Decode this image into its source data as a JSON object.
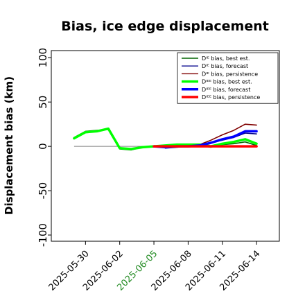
{
  "chart_data": {
    "type": "line",
    "title": "Bias, ice edge displacement",
    "xlabel": "",
    "ylabel": "Displacement bias (km)",
    "ylim": [
      -107,
      108
    ],
    "yticks": [
      -100,
      -50,
      0,
      50,
      100
    ],
    "xlim": [
      "2025-05-27",
      "2025-06-16"
    ],
    "xticks": [
      {
        "label": "2025-05-30",
        "color": "#000000"
      },
      {
        "label": "2025-06-02",
        "color": "#000000"
      },
      {
        "label": "2025-06-05",
        "color": "#228b22"
      },
      {
        "label": "2025-06-08",
        "color": "#000000"
      },
      {
        "label": "2025-06-11",
        "color": "#000000"
      },
      {
        "label": "2025-06-14",
        "color": "#000000"
      }
    ],
    "grid": false,
    "legend_position": "top-right",
    "zero_line": {
      "y": 0,
      "from": "2025-05-29",
      "to": "2025-06-05",
      "color": "#808080"
    },
    "series": [
      {
        "name": "Dᴵᴱ bias, best est.",
        "color": "#006400",
        "width": "thin",
        "x": [
          "2025-05-29",
          "2025-05-30",
          "2025-05-31",
          "2025-06-01",
          "2025-06-02",
          "2025-06-03",
          "2025-06-04",
          "2025-06-05",
          "2025-06-06",
          "2025-06-07",
          "2025-06-08",
          "2025-06-09",
          "2025-06-10",
          "2025-06-11",
          "2025-06-12",
          "2025-06-13",
          "2025-06-14"
        ],
        "y": [
          10,
          17,
          18,
          19,
          -3,
          -4,
          -1,
          0,
          1,
          2,
          2,
          1,
          -1,
          2,
          3,
          5,
          1
        ]
      },
      {
        "name": "Dᴵᴱ bias, forecast",
        "color": "#00008b",
        "width": "thin",
        "x": [
          "2025-06-06",
          "2025-06-07",
          "2025-06-08",
          "2025-06-09",
          "2025-06-10",
          "2025-06-11",
          "2025-06-12",
          "2025-06-13",
          "2025-06-14"
        ],
        "y": [
          -2,
          -1,
          0,
          2,
          4,
          7,
          10,
          15,
          14
        ]
      },
      {
        "name": "Dᴵᴱ bias, persistence",
        "color": "#800000",
        "width": "thin",
        "x": [
          "2025-06-05",
          "2025-06-06",
          "2025-06-07",
          "2025-06-08",
          "2025-06-09",
          "2025-06-10",
          "2025-06-11",
          "2025-06-12",
          "2025-06-13",
          "2025-06-14"
        ],
        "y": [
          0,
          0,
          0,
          0,
          2,
          7,
          13,
          18,
          25,
          24
        ]
      },
      {
        "name": "Dᴵᴱᴱ bias, best est.",
        "color": "#00ff00",
        "width": "thick",
        "x": [
          "2025-05-29",
          "2025-05-30",
          "2025-05-31",
          "2025-06-01",
          "2025-06-02",
          "2025-06-03",
          "2025-06-04",
          "2025-06-05",
          "2025-06-06",
          "2025-06-07",
          "2025-06-08",
          "2025-06-09",
          "2025-06-10",
          "2025-06-11",
          "2025-06-12",
          "2025-06-13",
          "2025-06-14"
        ],
        "y": [
          9,
          16,
          17,
          20,
          -2,
          -3,
          -1,
          0,
          1,
          2,
          2,
          2,
          0,
          3,
          5,
          8,
          3
        ]
      },
      {
        "name": "Dᴵᴱᴱ bias, forecast",
        "color": "#0000ff",
        "width": "thick",
        "x": [
          "2025-06-05",
          "2025-06-06",
          "2025-06-07",
          "2025-06-08",
          "2025-06-09",
          "2025-06-10",
          "2025-06-11",
          "2025-06-12",
          "2025-06-13",
          "2025-06-14"
        ],
        "y": [
          0,
          -1,
          0,
          0,
          1,
          4,
          8,
          11,
          17,
          17
        ]
      },
      {
        "name": "Dᴵᴱᴱ bias, persistence",
        "color": "#ff0000",
        "width": "thick",
        "x": [
          "2025-06-05",
          "2025-06-06",
          "2025-06-07",
          "2025-06-08",
          "2025-06-09",
          "2025-06-10",
          "2025-06-11",
          "2025-06-12",
          "2025-06-13",
          "2025-06-14"
        ],
        "y": [
          0,
          0,
          0,
          0,
          0,
          0,
          0,
          0,
          0,
          0
        ]
      }
    ]
  }
}
